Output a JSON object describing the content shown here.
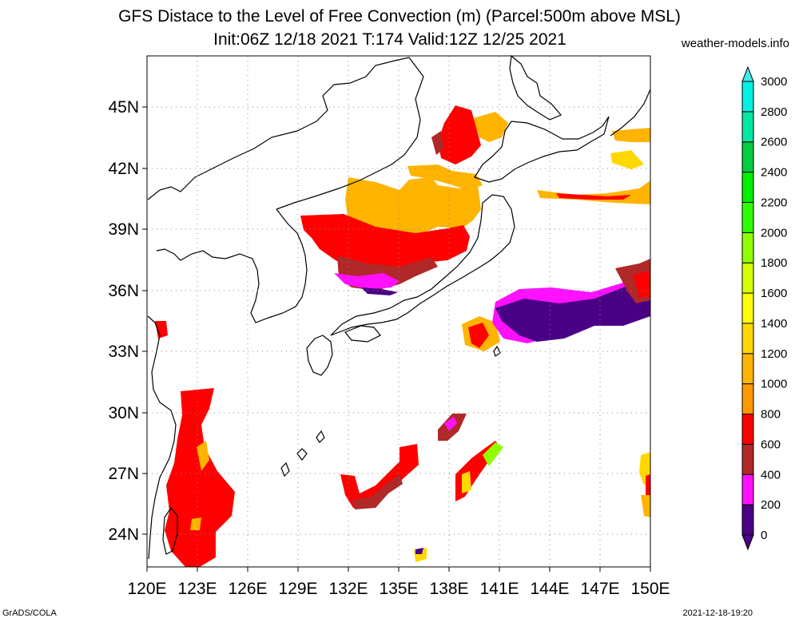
{
  "title": "GFS Distace to the Level of Free Convection (m) (Parcel:500m above MSL)",
  "subtitle": "Init:06Z 12/18 2021 T:174 Valid:12Z 12/25 2021",
  "site": "weather-models.info",
  "footer_left": "GrADS/COLA",
  "footer_right": "2021-12-18-19:20",
  "map": {
    "lon_range": [
      120,
      150
    ],
    "lat_range": [
      22.5,
      47.5
    ],
    "lon_ticks": [
      "120E",
      "123E",
      "126E",
      "129E",
      "132E",
      "135E",
      "138E",
      "141E",
      "144E",
      "147E",
      "150E"
    ],
    "lat_ticks": [
      "24N",
      "27N",
      "30N",
      "33N",
      "36N",
      "39N",
      "42N",
      "45N"
    ],
    "grid": "dotted"
  },
  "colorbar": {
    "labels": [
      "0",
      "200",
      "400",
      "600",
      "800",
      "1000",
      "1200",
      "1400",
      "1600",
      "1800",
      "2000",
      "2200",
      "2400",
      "2600",
      "2800",
      "3000"
    ],
    "colors": [
      "#4a0085",
      "#ff10ff",
      "#b02828",
      "#ff0000",
      "#ff9900",
      "#ffb400",
      "#ffd800",
      "#ffff00",
      "#d8ff00",
      "#90ff00",
      "#30ff00",
      "#00ee00",
      "#00cc40",
      "#00e8a0",
      "#00f0e0",
      "#40e8e8"
    ],
    "under_color": "#4a0085",
    "over_color": "#40e8e8"
  }
}
